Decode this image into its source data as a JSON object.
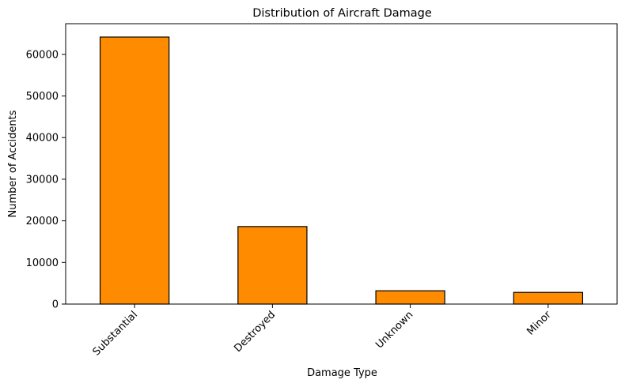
{
  "chart_data": {
    "type": "bar",
    "title": "Distribution of Aircraft Damage",
    "xlabel": "Damage Type",
    "ylabel": "Number of Accidents",
    "categories": [
      "Substantial",
      "Destroyed",
      "Unknown",
      "Minor"
    ],
    "values": [
      64148,
      18623,
      3194,
      2805
    ],
    "ylim": [
      0,
      67360
    ],
    "yticks": [
      0,
      10000,
      20000,
      30000,
      40000,
      50000,
      60000
    ],
    "ytick_labels": [
      "0",
      "10000",
      "20000",
      "30000",
      "40000",
      "50000",
      "60000"
    ],
    "grid": false,
    "legend": "none",
    "bar_color": "#ff8c00",
    "edge_color": "#000000"
  }
}
